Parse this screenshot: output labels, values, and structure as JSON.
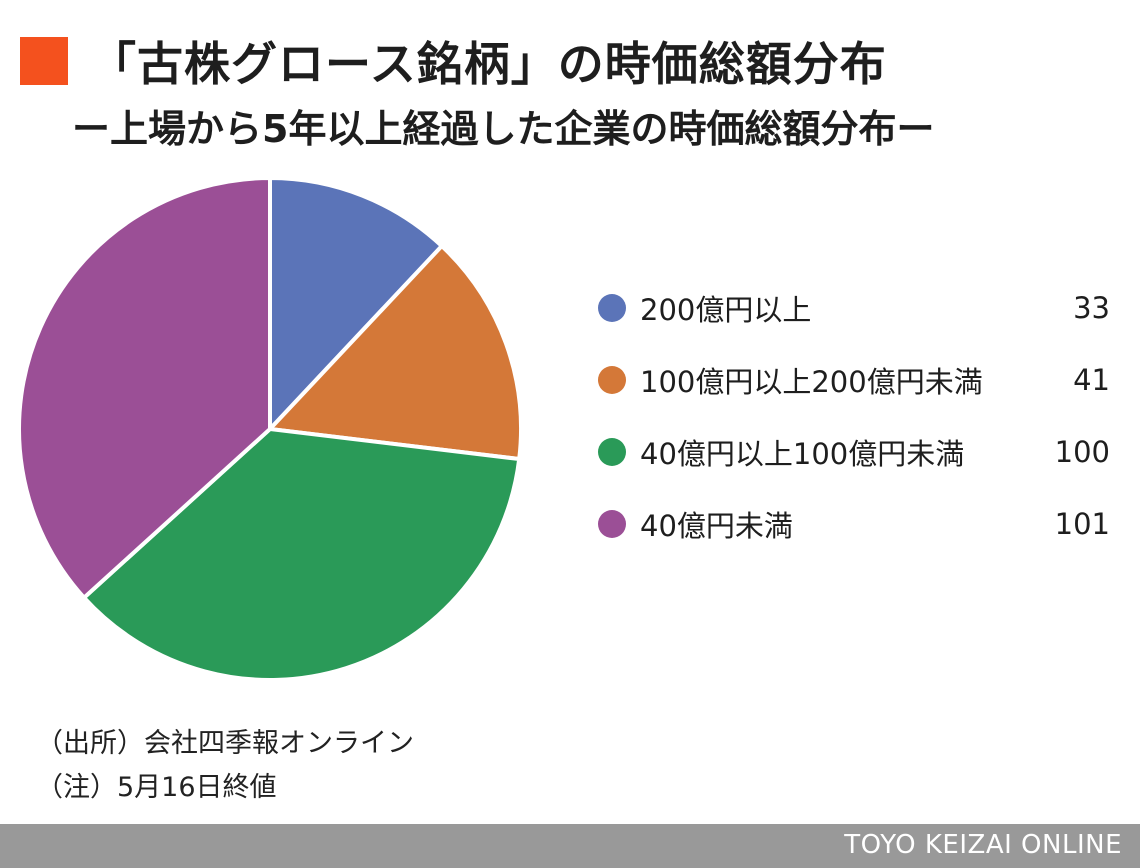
{
  "header": {
    "title": "「古株グロース銘柄」の時価総額分布",
    "subtitle": "ー上場から5年以上経過した企業の時価総額分布ー",
    "marker_color": "#f4511e"
  },
  "chart_data": {
    "type": "pie",
    "categories": [
      "200億円以上",
      "100億円以上200億円未満",
      "40億円以上100億円未満",
      "40億円未満"
    ],
    "values": [
      33,
      41,
      100,
      101
    ],
    "colors": [
      "#5b74b8",
      "#d47838",
      "#2a9a58",
      "#9b4f96"
    ],
    "start_angle": "12 o'clock",
    "direction": "clockwise",
    "legend_position": "right"
  },
  "notes": {
    "source": "（出所）会社四季報オンライン",
    "note": "（注）5月16日終値"
  },
  "footer": {
    "brand": "TOYO KEIZAI ONLINE"
  }
}
